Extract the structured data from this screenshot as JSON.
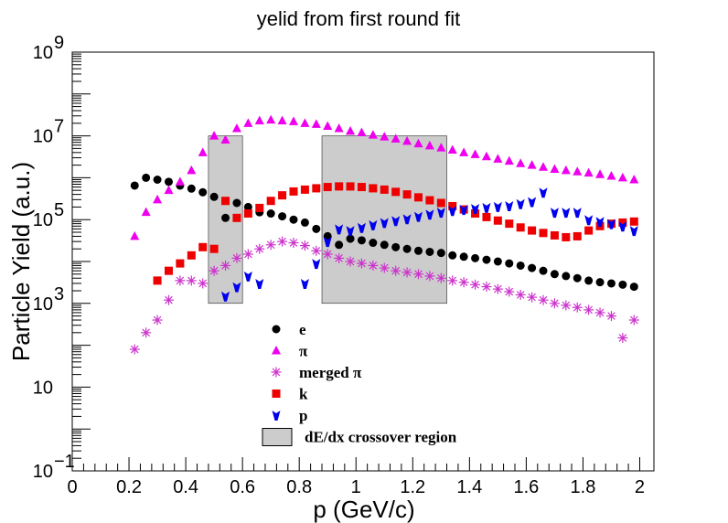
{
  "chart_data": {
    "type": "scatter",
    "title": "yelid from first round fit",
    "xlabel": "p (GeV/c)",
    "ylabel": "Particle Yield (a.u.)",
    "xlim": [
      0,
      2.05
    ],
    "ylim": [
      0.1,
      1000000000
    ],
    "yscale": "log",
    "x_tick_labels": [
      "0",
      "0.2",
      "0.4",
      "0.6",
      "0.8",
      "1",
      "1.2",
      "1.4",
      "1.6",
      "1.8",
      "2"
    ],
    "y_tick_labels": [
      {
        "base": "10",
        "exp": "−1"
      },
      {
        "base": "10",
        "exp": ""
      },
      {
        "base": "10",
        "exp": "3"
      },
      {
        "base": "10",
        "exp": "5"
      },
      {
        "base": "10",
        "exp": "7"
      },
      {
        "base": "10",
        "exp": "9"
      }
    ],
    "legend_position": "bottom-center",
    "series": [
      {
        "name": "e",
        "marker": "circle",
        "color": "#000000",
        "x": [
          0.22,
          0.26,
          0.3,
          0.34,
          0.38,
          0.42,
          0.46,
          0.5,
          0.54,
          0.58,
          0.62,
          0.66,
          0.7,
          0.74,
          0.78,
          0.82,
          0.86,
          0.9,
          0.94,
          0.98,
          1.02,
          1.06,
          1.1,
          1.14,
          1.18,
          1.22,
          1.26,
          1.3,
          1.34,
          1.38,
          1.42,
          1.46,
          1.5,
          1.54,
          1.58,
          1.62,
          1.66,
          1.7,
          1.74,
          1.78,
          1.82,
          1.86,
          1.9,
          1.94,
          1.98
        ],
        "y": [
          650000,
          1000000,
          900000,
          800000,
          650000,
          550000,
          450000,
          350000,
          110000,
          250000,
          200000,
          150000,
          140000,
          120000,
          100000,
          85000,
          60000,
          40000,
          25000,
          35000,
          32000,
          28000,
          25000,
          22000,
          20000,
          18000,
          17000,
          16000,
          14000,
          13000,
          12000,
          11000,
          10000,
          9000,
          8000,
          7000,
          6000,
          5000,
          4500,
          4000,
          3500,
          3200,
          3000,
          2800,
          2500
        ]
      },
      {
        "name": "π",
        "marker": "triangle",
        "color": "#ee00ee",
        "x": [
          0.22,
          0.26,
          0.3,
          0.34,
          0.38,
          0.42,
          0.46,
          0.5,
          0.54,
          0.58,
          0.62,
          0.66,
          0.7,
          0.74,
          0.78,
          0.82,
          0.86,
          0.9,
          0.94,
          0.98,
          1.02,
          1.06,
          1.1,
          1.14,
          1.18,
          1.22,
          1.26,
          1.3,
          1.34,
          1.38,
          1.42,
          1.46,
          1.5,
          1.54,
          1.58,
          1.62,
          1.66,
          1.7,
          1.74,
          1.78,
          1.82,
          1.86,
          1.9,
          1.94,
          1.98
        ],
        "y": [
          40000,
          150000,
          300000,
          500000,
          800000,
          1500000,
          4000000,
          10000000,
          8000000,
          15000000,
          20000000,
          23000000,
          24000000,
          23000000,
          22000000,
          20000000,
          19000000,
          17000000,
          15000000,
          13000000,
          12000000,
          10500000,
          9500000,
          8500000,
          7500000,
          6500000,
          5800000,
          5200000,
          4600000,
          4000000,
          3600000,
          3200000,
          2800000,
          2500000,
          2200000,
          2000000,
          1800000,
          1600000,
          1500000,
          1400000,
          1300000,
          1200000,
          1100000,
          1000000,
          900000
        ]
      },
      {
        "name": "merged  π",
        "marker": "star",
        "color": "#cc33cc",
        "x": [
          0.22,
          0.26,
          0.3,
          0.34,
          0.38,
          0.42,
          0.46,
          0.5,
          0.54,
          0.58,
          0.62,
          0.66,
          0.7,
          0.74,
          0.78,
          0.82,
          0.86,
          0.9,
          0.94,
          0.98,
          1.02,
          1.06,
          1.1,
          1.14,
          1.18,
          1.22,
          1.26,
          1.3,
          1.34,
          1.38,
          1.42,
          1.46,
          1.5,
          1.54,
          1.58,
          1.62,
          1.66,
          1.7,
          1.74,
          1.78,
          1.82,
          1.86,
          1.9,
          1.94,
          1.98
        ],
        "y": [
          80,
          200,
          400,
          1200,
          3500,
          3500,
          3000,
          6000,
          8000,
          12000,
          15000,
          20000,
          25000,
          30000,
          28000,
          24000,
          18000,
          15000,
          12000,
          10000,
          9000,
          8000,
          7000,
          6000,
          5500,
          5000,
          4500,
          4000,
          3500,
          3200,
          2800,
          2500,
          2200,
          1900,
          1600,
          1400,
          1200,
          1000,
          900,
          800,
          700,
          600,
          500,
          150,
          400
        ]
      },
      {
        "name": "k",
        "marker": "square",
        "color": "#ee0000",
        "x": [
          0.3,
          0.34,
          0.38,
          0.42,
          0.46,
          0.5,
          0.54,
          0.58,
          0.62,
          0.66,
          0.7,
          0.74,
          0.78,
          0.82,
          0.86,
          0.9,
          0.94,
          0.98,
          1.02,
          1.06,
          1.1,
          1.14,
          1.18,
          1.22,
          1.26,
          1.3,
          1.34,
          1.38,
          1.42,
          1.46,
          1.5,
          1.54,
          1.58,
          1.62,
          1.66,
          1.7,
          1.74,
          1.78,
          1.82,
          1.86,
          1.9,
          1.94,
          1.98
        ],
        "y": [
          3500,
          6000,
          9000,
          14000,
          22000,
          20000,
          280000,
          110000,
          140000,
          190000,
          280000,
          380000,
          470000,
          520000,
          560000,
          600000,
          620000,
          620000,
          600000,
          560000,
          520000,
          460000,
          400000,
          340000,
          290000,
          250000,
          210000,
          175000,
          140000,
          115000,
          95000,
          80000,
          65000,
          55000,
          48000,
          42000,
          38000,
          40000,
          55000,
          70000,
          80000,
          85000,
          90000
        ]
      },
      {
        "name": "p",
        "marker": "down-triangle",
        "color": "#0000ee",
        "x": [
          0.54,
          0.58,
          0.62,
          0.66,
          0.82,
          0.86,
          0.9,
          0.94,
          0.98,
          1.02,
          1.06,
          1.1,
          1.14,
          1.18,
          1.22,
          1.26,
          1.3,
          1.34,
          1.38,
          1.42,
          1.46,
          1.5,
          1.54,
          1.58,
          1.62,
          1.66,
          1.7,
          1.74,
          1.78,
          1.82,
          1.86,
          1.9,
          1.94,
          1.98
        ],
        "y": [
          1500,
          2500,
          4500,
          3000,
          3000,
          9000,
          30000,
          60000,
          55000,
          65000,
          75000,
          85000,
          95000,
          105000,
          120000,
          135000,
          150000,
          165000,
          175000,
          185000,
          195000,
          205000,
          215000,
          240000,
          270000,
          450000,
          150000,
          150000,
          150000,
          100000,
          90000,
          80000,
          70000,
          55000
        ]
      }
    ],
    "crossover_regions": [
      {
        "x": [
          0.48,
          0.6
        ],
        "y": [
          1000,
          10000000
        ]
      },
      {
        "x": [
          0.88,
          1.32
        ],
        "y": [
          1000,
          10000000
        ]
      }
    ],
    "crossover_label": "dE/dx crossover region"
  }
}
